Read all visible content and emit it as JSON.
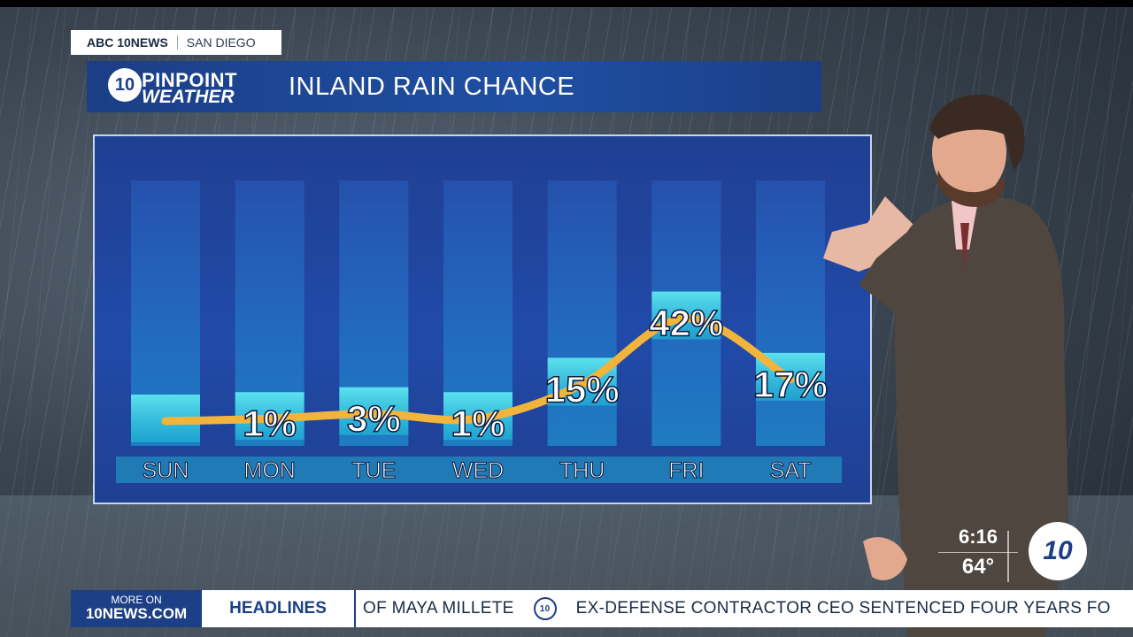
{
  "station": {
    "brand": "ABC 10NEWS",
    "city": "SAN DIEGO"
  },
  "logo": {
    "circle_text": "10",
    "line1": "PINPOINT",
    "line2": "WEATHER"
  },
  "title": "INLAND RAIN CHANCE",
  "colors": {
    "panel": "#214aa8",
    "accent_line": "#f2b43a",
    "highlight": "#2ad6e6",
    "brand_blue": "#1c3f86"
  },
  "chart_data": {
    "type": "line",
    "categories": [
      "SUN",
      "MON",
      "TUE",
      "WED",
      "THU",
      "FRI",
      "SAT"
    ],
    "values": [
      0,
      1,
      3,
      1,
      15,
      42,
      17
    ],
    "value_labels": [
      "",
      "1%",
      "3%",
      "1%",
      "15%",
      "42%",
      "17%"
    ],
    "ylim": [
      0,
      100
    ],
    "grid": false
  },
  "status": {
    "time": "6:16",
    "temp": "64°",
    "logo_text": "10"
  },
  "ticker": {
    "more_line1": "MORE ON",
    "more_line2": "10NEWS.COM",
    "headlines_label": "HEADLINES",
    "item1": "OF MAYA MILLETE",
    "item2": "EX-DEFENSE CONTRACTOR CEO SENTENCED FOUR YEARS FO",
    "sep_icon": "abc-10-logo-icon"
  }
}
